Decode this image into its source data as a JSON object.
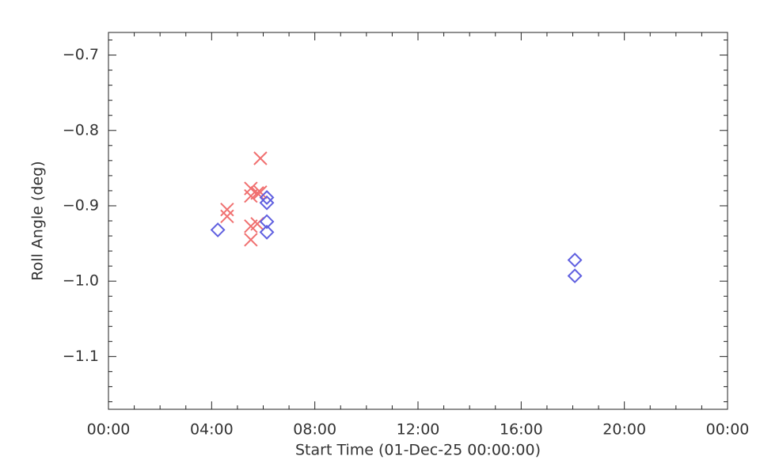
{
  "chart_data": {
    "type": "scatter",
    "xlabel": "Start Time (01-Dec-25 00:00:00)",
    "ylabel": "Roll Angle (deg)",
    "xlim": [
      0,
      24
    ],
    "ylim": [
      -1.17,
      -0.67
    ],
    "xticks": [
      {
        "value": 0,
        "label": "00:00"
      },
      {
        "value": 4,
        "label": "04:00"
      },
      {
        "value": 8,
        "label": "08:00"
      },
      {
        "value": 12,
        "label": "12:00"
      },
      {
        "value": 16,
        "label": "16:00"
      },
      {
        "value": 20,
        "label": "20:00"
      },
      {
        "value": 24,
        "label": "00:00"
      }
    ],
    "yticks": [
      {
        "value": -0.7,
        "label": "−0.7"
      },
      {
        "value": -0.8,
        "label": "−0.8"
      },
      {
        "value": -0.9,
        "label": "−0.9"
      },
      {
        "value": -1.0,
        "label": "−1.0"
      },
      {
        "value": -1.1,
        "label": "−1.1"
      }
    ],
    "minor_xticks": [
      1,
      2,
      3,
      5,
      6,
      7,
      9,
      10,
      11,
      13,
      14,
      15,
      17,
      18,
      19,
      21,
      22,
      23
    ],
    "minor_yticks": [
      -1.16,
      -1.14,
      -1.12,
      -1.08,
      -1.06,
      -1.04,
      -1.02,
      -0.98,
      -0.96,
      -0.94,
      -0.92,
      -0.88,
      -0.86,
      -0.84,
      -0.82,
      -0.78,
      -0.76,
      -0.74,
      -0.72,
      -0.68
    ],
    "series": [
      {
        "marker": "x",
        "color": "#f07070",
        "x": [
          4.6,
          4.6,
          5.52,
          5.52,
          5.52,
          5.52,
          5.77,
          5.89,
          5.89,
          5.77
        ],
        "values": [
          -0.905,
          -0.914,
          -0.877,
          -0.887,
          -0.927,
          -0.945,
          -0.883,
          -0.837,
          -0.882,
          -0.924
        ]
      },
      {
        "marker": "diamond",
        "color": "#6060e0",
        "x": [
          4.24,
          6.14,
          6.14,
          6.14,
          6.14,
          18.08,
          18.08
        ],
        "values": [
          -0.932,
          -0.889,
          -0.896,
          -0.921,
          -0.935,
          -0.972,
          -0.993
        ]
      }
    ]
  }
}
